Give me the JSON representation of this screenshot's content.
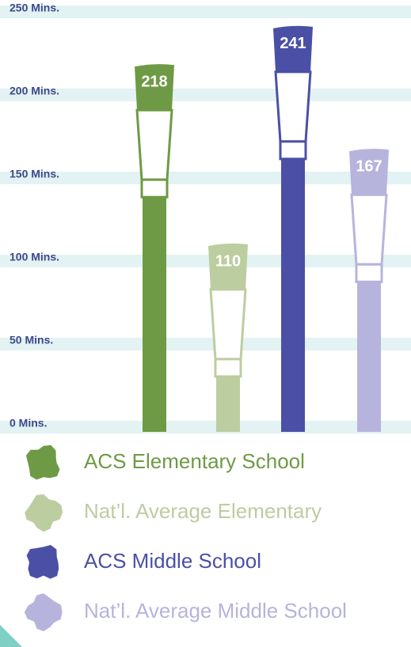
{
  "chart_data": {
    "type": "bar",
    "ylim": [
      0,
      250
    ],
    "yticks": [
      {
        "value": 0,
        "label": "0 Mins."
      },
      {
        "value": 50,
        "label": "50 Mins."
      },
      {
        "value": 100,
        "label": "100 Mins."
      },
      {
        "value": 150,
        "label": "150 Mins."
      },
      {
        "value": 200,
        "label": "200 Mins."
      },
      {
        "value": 250,
        "label": "250 Mins."
      }
    ],
    "grid": true,
    "series": [
      {
        "name": "ACS Elementary School",
        "color": "#6e9a45",
        "values": [
          218
        ]
      },
      {
        "name": "Nat’l. Average Elementary",
        "color": "#bccda0",
        "values": [
          110
        ]
      },
      {
        "name": "ACS Middle School",
        "color": "#4b50a6",
        "values": [
          241
        ]
      },
      {
        "name": "Nat’l. Average Middle School",
        "color": "#b6b4dc",
        "values": [
          167
        ]
      }
    ]
  }
}
